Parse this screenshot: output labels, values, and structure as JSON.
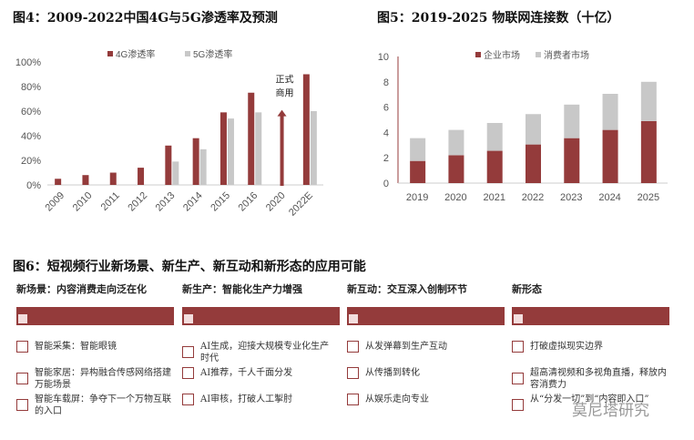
{
  "chart_data": [
    {
      "type": "bar",
      "title": "图4：2009-2022中国4G与5G渗透率及预测",
      "categories": [
        "2009",
        "2010",
        "2011",
        "2012",
        "2013",
        "2014",
        "2015",
        "2016",
        "2020",
        "2022E"
      ],
      "series": [
        {
          "name": "4G渗透率",
          "color": "#943b3b",
          "values": [
            5,
            8,
            10,
            14,
            32,
            38,
            59,
            75,
            null,
            90
          ]
        },
        {
          "name": "5G渗透率",
          "color": "#c8c8c8",
          "values": [
            null,
            null,
            null,
            null,
            19,
            29,
            54,
            59,
            null,
            60
          ]
        }
      ],
      "yticks": [
        "0%",
        "20%",
        "40%",
        "60%",
        "80%",
        "100%"
      ],
      "ylim": [
        0,
        100
      ],
      "annotation": {
        "category": "2020",
        "text_lines": [
          "正式",
          "商用"
        ],
        "arrow_to": 61
      },
      "legend": "top"
    },
    {
      "type": "stacked-bar",
      "title": "图5：2019-2025 物联网连接数（十亿）",
      "categories": [
        "2019",
        "2020",
        "2021",
        "2022",
        "2023",
        "2024",
        "2025"
      ],
      "series": [
        {
          "name": "企业市场",
          "color": "#943b3b",
          "values": [
            1.75,
            2.2,
            2.55,
            3.05,
            3.55,
            4.2,
            4.9
          ]
        },
        {
          "name": "消费者市场",
          "color": "#c8c8c8",
          "values": [
            1.8,
            2.0,
            2.2,
            2.4,
            2.65,
            2.85,
            3.1
          ]
        }
      ],
      "yticks": [
        "0",
        "2",
        "4",
        "6",
        "8",
        "10"
      ],
      "ylim": [
        0,
        10
      ],
      "legend": "top"
    }
  ],
  "fig6": {
    "title": "图6：短视频行业新场景、新生产、新互动和新形态的应用可能",
    "columns": [
      {
        "header": "新场景：内容消费走向泛在化",
        "items": [
          "智能采集：智能眼镜",
          "智能家居：异构融合传感网络搭建万能场景",
          "智能车载屏：争夺下一个万物互联的入口"
        ]
      },
      {
        "header": "新生产：智能化生产力增强",
        "items": [
          "AI生成，迎接大规模专业化生产时代",
          "AI推荐，千人千面分发",
          "AI审核，打破人工掣肘"
        ]
      },
      {
        "header": "新互动：交互深入创制环节",
        "items": [
          "从发弹幕到生产互动",
          "从传播到转化",
          "从娱乐走向专业"
        ]
      },
      {
        "header": "新形态",
        "items": [
          "打破虚拟现实边界",
          "超高清视频和多视角直播，释放内容消费力",
          "从“分发一切”到“内容即入口”"
        ]
      }
    ]
  },
  "watermark": "莫尼塔研究"
}
